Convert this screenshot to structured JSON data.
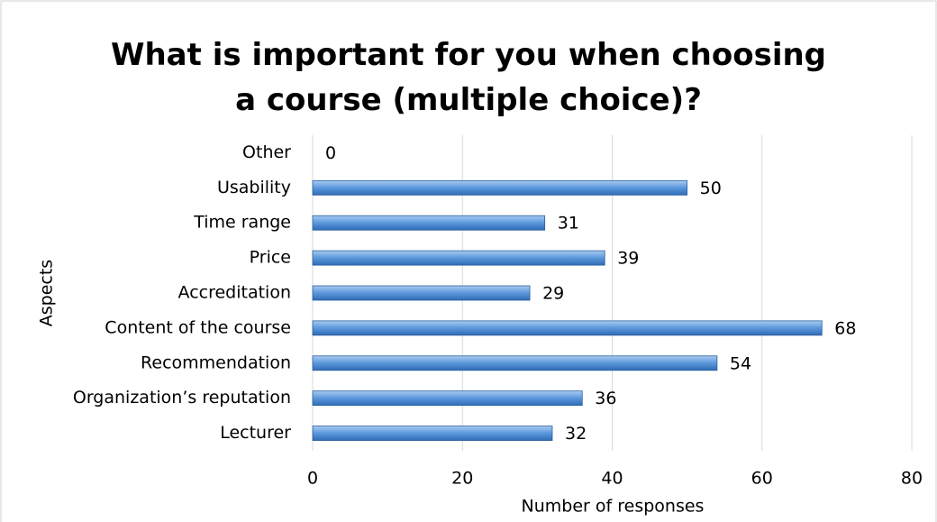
{
  "chart_data": {
    "type": "bar",
    "orientation": "horizontal",
    "title": "What is important for you when choosing a course (multiple choice)?",
    "xlabel": "Number of responses",
    "ylabel": "Aspects",
    "categories": [
      "Lecturer",
      "Organization’s reputation",
      "Recommendation",
      "Content of the course",
      "Accreditation",
      "Price",
      "Time range",
      "Usability",
      "Other"
    ],
    "values": [
      32,
      36,
      54,
      68,
      29,
      39,
      31,
      50,
      0
    ],
    "color": "#4f8fd6",
    "xlim": [
      0,
      80
    ],
    "xticks": [
      0,
      20,
      40,
      60,
      80
    ],
    "grid": true
  }
}
